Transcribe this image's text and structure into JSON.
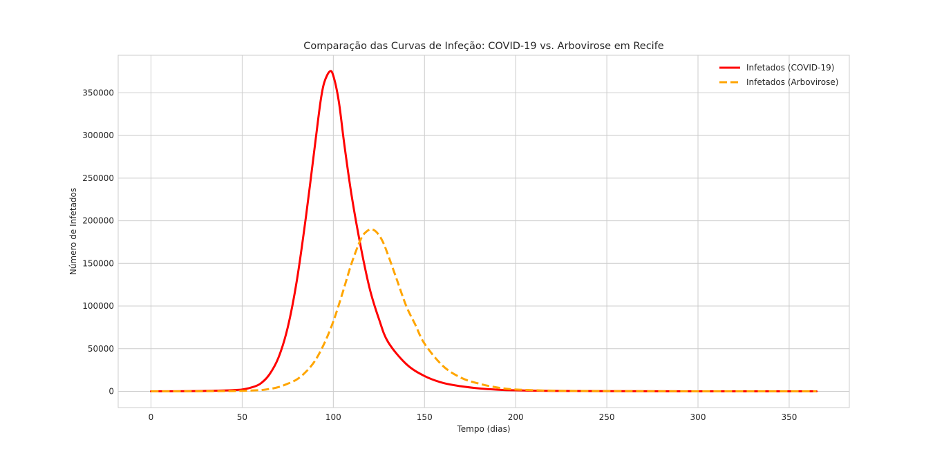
{
  "chart_data": {
    "type": "line",
    "title": "Comparação das Curvas de Infeção: COVID-19 vs. Arbovirose em Recife",
    "xlabel": "Tempo (dias)",
    "ylabel": "Número de Infetados",
    "xlim": [
      -18,
      383
    ],
    "ylim": [
      -19000,
      394000
    ],
    "xticks": [
      0,
      50,
      100,
      150,
      200,
      250,
      300,
      350
    ],
    "yticks": [
      0,
      50000,
      100000,
      150000,
      200000,
      250000,
      300000,
      350000
    ],
    "grid": true,
    "legend": "top-right",
    "series": [
      {
        "name": "Infetados (COVID-19)",
        "color": "#ff0000",
        "style": "solid",
        "x": [
          0,
          20,
          30,
          40,
          45,
          50,
          55,
          60,
          65,
          70,
          75,
          80,
          85,
          90,
          93,
          95,
          98,
          100,
          103,
          106,
          110,
          115,
          120,
          125,
          130,
          140,
          150,
          160,
          170,
          180,
          190,
          200,
          220,
          250,
          300,
          365
        ],
        "y": [
          0,
          200,
          500,
          1000,
          1500,
          2200,
          4500,
          9000,
          20000,
          40000,
          75000,
          130000,
          205000,
          290000,
          340000,
          362000,
          375000,
          370000,
          340000,
          290000,
          230000,
          170000,
          120000,
          85000,
          58000,
          32000,
          18000,
          10000,
          6000,
          3500,
          2000,
          1200,
          500,
          200,
          50,
          0
        ]
      },
      {
        "name": "Infetados (Arbovirose)",
        "color": "#ffa500",
        "style": "dashed",
        "x": [
          0,
          20,
          40,
          50,
          60,
          65,
          70,
          75,
          80,
          85,
          90,
          95,
          100,
          105,
          110,
          115,
          118,
          121,
          124,
          127,
          130,
          135,
          140,
          145,
          150,
          160,
          170,
          180,
          190,
          200,
          220,
          250,
          300,
          365
        ],
        "y": [
          0,
          100,
          300,
          600,
          1500,
          2800,
          5000,
          9000,
          14000,
          23000,
          36000,
          56000,
          82000,
          115000,
          150000,
          178000,
          187000,
          190000,
          186000,
          176000,
          160000,
          130000,
          100000,
          78000,
          56000,
          30000,
          16000,
          9000,
          4500,
          2200,
          800,
          300,
          50,
          0
        ]
      }
    ]
  }
}
